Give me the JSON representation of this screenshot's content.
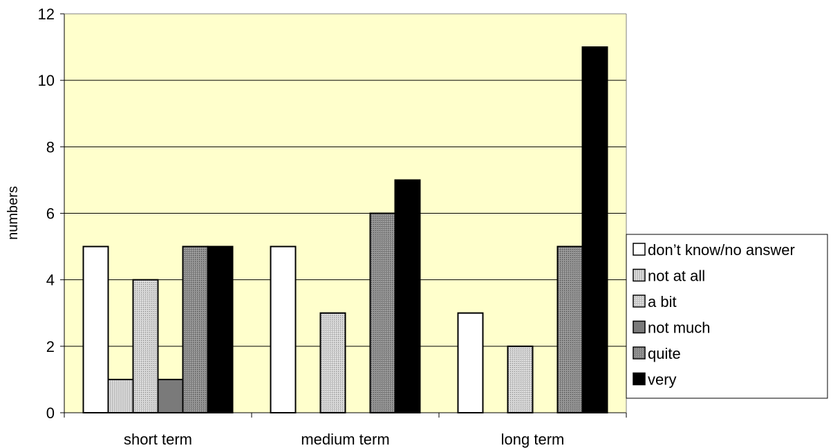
{
  "chart_data": {
    "type": "bar",
    "title": "",
    "xlabel": "",
    "ylabel": "numbers",
    "ylim": [
      0,
      12
    ],
    "yticks": [
      0,
      2,
      4,
      6,
      8,
      10,
      12
    ],
    "grid": "horizontal",
    "legend_position": "right",
    "plot_background": "#ffffcc",
    "categories": [
      "short term",
      "medium term",
      "long term"
    ],
    "series": [
      {
        "name": "don’t know/no answer",
        "color": "#ffffff",
        "pattern": "none",
        "values": [
          5,
          5,
          3
        ]
      },
      {
        "name": "not at all",
        "color": "#d4d4d4",
        "pattern": "fine-vertical",
        "values": [
          1,
          0,
          0
        ]
      },
      {
        "name": "a bit",
        "color": "#c4c4c4",
        "pattern": "fine-dots",
        "values": [
          4,
          3,
          2
        ]
      },
      {
        "name": "not much",
        "color": "#7a7a7a",
        "pattern": "none",
        "values": [
          1,
          0,
          0
        ]
      },
      {
        "name": "quite",
        "color": "#8c8c8c",
        "pattern": "fine-dots",
        "values": [
          5,
          6,
          5
        ]
      },
      {
        "name": "very",
        "color": "#000000",
        "pattern": "none",
        "values": [
          5,
          7,
          11
        ]
      }
    ]
  }
}
